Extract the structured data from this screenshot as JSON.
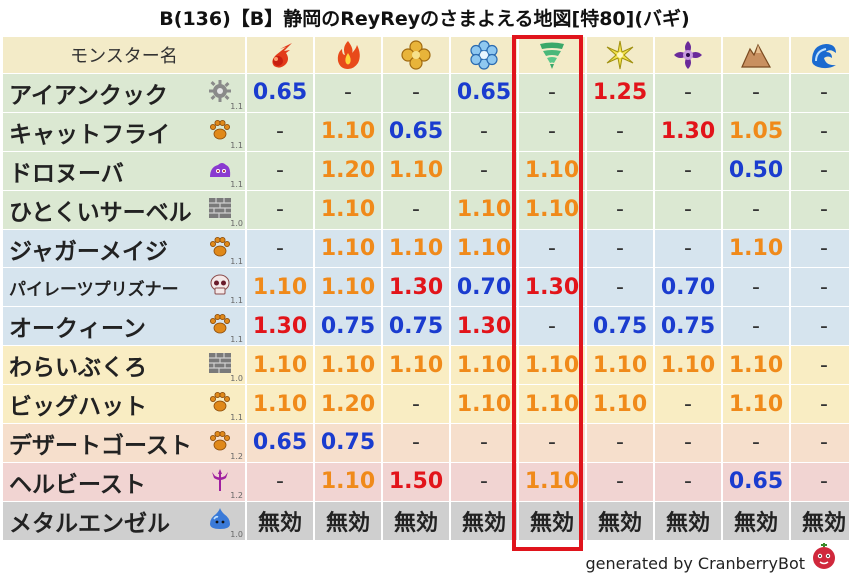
{
  "title": "B(136)【B】静岡のReyReyのさまよえる地図[特80](バギ)",
  "header": {
    "name_label": "モンスター名",
    "elements": [
      {
        "icon": "fire-icon"
      },
      {
        "icon": "flame-icon"
      },
      {
        "icon": "earth-icon"
      },
      {
        "icon": "ice-icon"
      },
      {
        "icon": "wind-icon"
      },
      {
        "icon": "light-icon"
      },
      {
        "icon": "dark-icon"
      },
      {
        "icon": "rock-icon"
      },
      {
        "icon": "wave-icon"
      }
    ]
  },
  "rows": [
    {
      "name": "アイアンクック",
      "type_icon": "gear-icon",
      "level": "1.1",
      "bg": "r-green",
      "cells": [
        {
          "v": "0.65",
          "c": "v-blue"
        },
        {
          "v": "-",
          "c": "v-dash"
        },
        {
          "v": "-",
          "c": "v-dash"
        },
        {
          "v": "0.65",
          "c": "v-blue"
        },
        {
          "v": "-",
          "c": "v-dash"
        },
        {
          "v": "1.25",
          "c": "v-red"
        },
        {
          "v": "-",
          "c": "v-dash"
        },
        {
          "v": "-",
          "c": "v-dash"
        },
        {
          "v": "-",
          "c": "v-dash"
        }
      ]
    },
    {
      "name": "キャットフライ",
      "type_icon": "paw-icon",
      "level": "1.1",
      "bg": "r-green",
      "cells": [
        {
          "v": "-",
          "c": "v-dash"
        },
        {
          "v": "1.10",
          "c": "v-orange"
        },
        {
          "v": "0.65",
          "c": "v-blue"
        },
        {
          "v": "-",
          "c": "v-dash"
        },
        {
          "v": "-",
          "c": "v-dash"
        },
        {
          "v": "-",
          "c": "v-dash"
        },
        {
          "v": "1.30",
          "c": "v-red"
        },
        {
          "v": "1.05",
          "c": "v-orange"
        },
        {
          "v": "-",
          "c": "v-dash"
        }
      ]
    },
    {
      "name": "ドロヌーバ",
      "type_icon": "slime-purple-icon",
      "level": "1.1",
      "bg": "r-green",
      "cells": [
        {
          "v": "-",
          "c": "v-dash"
        },
        {
          "v": "1.20",
          "c": "v-orange"
        },
        {
          "v": "1.10",
          "c": "v-orange"
        },
        {
          "v": "-",
          "c": "v-dash"
        },
        {
          "v": "1.10",
          "c": "v-orange"
        },
        {
          "v": "-",
          "c": "v-dash"
        },
        {
          "v": "-",
          "c": "v-dash"
        },
        {
          "v": "0.50",
          "c": "v-blue"
        },
        {
          "v": "-",
          "c": "v-dash"
        }
      ]
    },
    {
      "name": "ひとくいサーベル",
      "type_icon": "brick-icon",
      "level": "1.0",
      "bg": "r-green",
      "cells": [
        {
          "v": "-",
          "c": "v-dash"
        },
        {
          "v": "1.10",
          "c": "v-orange"
        },
        {
          "v": "-",
          "c": "v-dash"
        },
        {
          "v": "1.10",
          "c": "v-orange"
        },
        {
          "v": "1.10",
          "c": "v-orange"
        },
        {
          "v": "-",
          "c": "v-dash"
        },
        {
          "v": "-",
          "c": "v-dash"
        },
        {
          "v": "-",
          "c": "v-dash"
        },
        {
          "v": "-",
          "c": "v-dash"
        }
      ]
    },
    {
      "name": "ジャガーメイジ",
      "type_icon": "paw-icon",
      "level": "1.1",
      "bg": "r-blue",
      "cells": [
        {
          "v": "-",
          "c": "v-dash"
        },
        {
          "v": "1.10",
          "c": "v-orange"
        },
        {
          "v": "1.10",
          "c": "v-orange"
        },
        {
          "v": "1.10",
          "c": "v-orange"
        },
        {
          "v": "-",
          "c": "v-dash"
        },
        {
          "v": "-",
          "c": "v-dash"
        },
        {
          "v": "-",
          "c": "v-dash"
        },
        {
          "v": "1.10",
          "c": "v-orange"
        },
        {
          "v": "-",
          "c": "v-dash"
        }
      ]
    },
    {
      "name": "パイレーツプリズナー",
      "type_icon": "skull-icon",
      "level": "1.1",
      "bg": "r-blue",
      "small": true,
      "cells": [
        {
          "v": "1.10",
          "c": "v-orange"
        },
        {
          "v": "1.10",
          "c": "v-orange"
        },
        {
          "v": "1.30",
          "c": "v-red"
        },
        {
          "v": "0.70",
          "c": "v-blue"
        },
        {
          "v": "1.30",
          "c": "v-red"
        },
        {
          "v": "-",
          "c": "v-dash"
        },
        {
          "v": "0.70",
          "c": "v-blue"
        },
        {
          "v": "-",
          "c": "v-dash"
        },
        {
          "v": "-",
          "c": "v-dash"
        }
      ]
    },
    {
      "name": "オークィーン",
      "type_icon": "paw-icon",
      "level": "1.1",
      "bg": "r-blue",
      "cells": [
        {
          "v": "1.30",
          "c": "v-red"
        },
        {
          "v": "0.75",
          "c": "v-blue"
        },
        {
          "v": "0.75",
          "c": "v-blue"
        },
        {
          "v": "1.30",
          "c": "v-red"
        },
        {
          "v": "-",
          "c": "v-dash"
        },
        {
          "v": "0.75",
          "c": "v-blue"
        },
        {
          "v": "0.75",
          "c": "v-blue"
        },
        {
          "v": "-",
          "c": "v-dash"
        },
        {
          "v": "-",
          "c": "v-dash"
        }
      ]
    },
    {
      "name": "わらいぶくろ",
      "type_icon": "brick-icon",
      "level": "1.0",
      "bg": "r-yell",
      "cells": [
        {
          "v": "1.10",
          "c": "v-orange"
        },
        {
          "v": "1.10",
          "c": "v-orange"
        },
        {
          "v": "1.10",
          "c": "v-orange"
        },
        {
          "v": "1.10",
          "c": "v-orange"
        },
        {
          "v": "1.10",
          "c": "v-orange"
        },
        {
          "v": "1.10",
          "c": "v-orange"
        },
        {
          "v": "1.10",
          "c": "v-orange"
        },
        {
          "v": "1.10",
          "c": "v-orange"
        },
        {
          "v": "-",
          "c": "v-dash"
        }
      ]
    },
    {
      "name": "ビッグハット",
      "type_icon": "paw-icon",
      "level": "1.1",
      "bg": "r-yell",
      "cells": [
        {
          "v": "1.10",
          "c": "v-orange"
        },
        {
          "v": "1.20",
          "c": "v-orange"
        },
        {
          "v": "-",
          "c": "v-dash"
        },
        {
          "v": "1.10",
          "c": "v-orange"
        },
        {
          "v": "1.10",
          "c": "v-orange"
        },
        {
          "v": "1.10",
          "c": "v-orange"
        },
        {
          "v": "-",
          "c": "v-dash"
        },
        {
          "v": "1.10",
          "c": "v-orange"
        },
        {
          "v": "-",
          "c": "v-dash"
        }
      ]
    },
    {
      "name": "デザートゴースト",
      "type_icon": "paw-icon",
      "level": "1.2",
      "bg": "r-peach",
      "cells": [
        {
          "v": "0.65",
          "c": "v-blue"
        },
        {
          "v": "0.75",
          "c": "v-blue"
        },
        {
          "v": "-",
          "c": "v-dash"
        },
        {
          "v": "-",
          "c": "v-dash"
        },
        {
          "v": "-",
          "c": "v-dash"
        },
        {
          "v": "-",
          "c": "v-dash"
        },
        {
          "v": "-",
          "c": "v-dash"
        },
        {
          "v": "-",
          "c": "v-dash"
        },
        {
          "v": "-",
          "c": "v-dash"
        }
      ]
    },
    {
      "name": "ヘルビースト",
      "type_icon": "trident-icon",
      "level": "1.2",
      "bg": "r-pink",
      "cells": [
        {
          "v": "-",
          "c": "v-dash"
        },
        {
          "v": "1.10",
          "c": "v-orange"
        },
        {
          "v": "1.50",
          "c": "v-red"
        },
        {
          "v": "-",
          "c": "v-dash"
        },
        {
          "v": "1.10",
          "c": "v-orange"
        },
        {
          "v": "-",
          "c": "v-dash"
        },
        {
          "v": "-",
          "c": "v-dash"
        },
        {
          "v": "0.65",
          "c": "v-blue"
        },
        {
          "v": "-",
          "c": "v-dash"
        }
      ]
    },
    {
      "name": "メタルエンゼル",
      "type_icon": "slime-blue-icon",
      "level": "1.0",
      "bg": "r-gray",
      "cells": [
        {
          "v": "無効",
          "c": "v-muko"
        },
        {
          "v": "無効",
          "c": "v-muko"
        },
        {
          "v": "無効",
          "c": "v-muko"
        },
        {
          "v": "無効",
          "c": "v-muko"
        },
        {
          "v": "無効",
          "c": "v-muko"
        },
        {
          "v": "無効",
          "c": "v-muko"
        },
        {
          "v": "無効",
          "c": "v-muko"
        },
        {
          "v": "無効",
          "c": "v-muko"
        },
        {
          "v": "無効",
          "c": "v-muko"
        }
      ]
    }
  ],
  "highlight_column": 4,
  "colors": {
    "highlight": "#e0141c",
    "blue": "#1a3ccf",
    "orange": "#f08a1a",
    "red": "#e2141a"
  },
  "footer": "generated by CranberryBot"
}
